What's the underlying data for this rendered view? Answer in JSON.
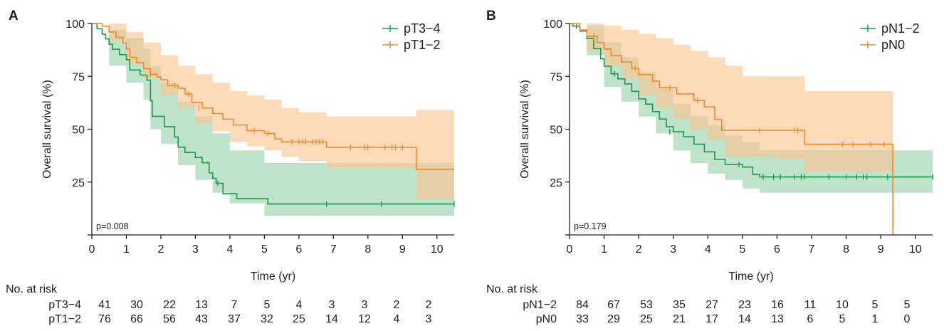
{
  "colors": {
    "green": "#1a9a4a",
    "orange": "#f08a2c",
    "green_band": "#a9d9b8",
    "orange_band": "#fbc58e",
    "axis": "#222222"
  },
  "chart_data": [
    {
      "type": "line",
      "subtype": "kaplan-meier",
      "panel_label": "A",
      "xlabel": "Time (yr)",
      "ylabel": "Overall survival (%)",
      "xlim": [
        0,
        10.5
      ],
      "ylim": [
        0,
        100
      ],
      "xticks": [
        "0",
        "1",
        "2",
        "3",
        "4",
        "5",
        "6",
        "7",
        "8",
        "9",
        "10"
      ],
      "yticks": [
        "25",
        "50",
        "75",
        "100"
      ],
      "legend_position": "top-right",
      "p_value": "p=0.008",
      "risk_title": "No. at risk",
      "series": [
        {
          "name": "pT3−4",
          "color_key": "green",
          "steps": [
            [
              0,
              100
            ],
            [
              0.15,
              97.5
            ],
            [
              0.3,
              95
            ],
            [
              0.4,
              92.7
            ],
            [
              0.5,
              90.2
            ],
            [
              0.6,
              87.8
            ],
            [
              0.8,
              85.3
            ],
            [
              1.0,
              82.9
            ],
            [
              1.1,
              78
            ],
            [
              1.4,
              75.6
            ],
            [
              1.6,
              73.2
            ],
            [
              1.7,
              63.4
            ],
            [
              1.75,
              56.1
            ],
            [
              2.1,
              51.2
            ],
            [
              2.4,
              46.3
            ],
            [
              2.5,
              41.5
            ],
            [
              2.7,
              39
            ],
            [
              3.0,
              36.6
            ],
            [
              3.2,
              34.1
            ],
            [
              3.4,
              29.3
            ],
            [
              3.5,
              26.8
            ],
            [
              3.6,
              24.4
            ],
            [
              3.8,
              19.5
            ],
            [
              4.2,
              17.1
            ],
            [
              5.1,
              14.6
            ],
            [
              10.5,
              14.6
            ]
          ],
          "censors": [
            [
              3.65,
              24.4
            ],
            [
              6.8,
              14.6
            ],
            [
              8.4,
              14.6
            ],
            [
              10.5,
              14.6
            ]
          ],
          "band": [
            [
              0,
              100,
              100
            ],
            [
              0.5,
              97,
              80
            ],
            [
              1.0,
              93,
              72
            ],
            [
              1.5,
              88,
              64
            ],
            [
              1.7,
              80,
              50
            ],
            [
              2.0,
              72,
              43
            ],
            [
              2.5,
              63,
              33
            ],
            [
              3.0,
              56,
              26
            ],
            [
              3.5,
              48,
              20
            ],
            [
              4.0,
              40,
              15
            ],
            [
              5.0,
              34,
              9
            ],
            [
              10.5,
              32,
              7
            ]
          ],
          "risk": [
            "41",
            "30",
            "22",
            "13",
            "7",
            "5",
            "4",
            "3",
            "3",
            "2",
            "2"
          ]
        },
        {
          "name": "pT1−2",
          "color_key": "orange",
          "steps": [
            [
              0,
              100
            ],
            [
              0.3,
              98.7
            ],
            [
              0.5,
              96
            ],
            [
              0.7,
              93.4
            ],
            [
              0.9,
              90.7
            ],
            [
              1.0,
              88
            ],
            [
              1.1,
              84
            ],
            [
              1.3,
              81.4
            ],
            [
              1.5,
              78.7
            ],
            [
              1.7,
              76
            ],
            [
              1.9,
              74.7
            ],
            [
              2.0,
              73.4
            ],
            [
              2.2,
              70.7
            ],
            [
              2.5,
              69.4
            ],
            [
              2.7,
              66.7
            ],
            [
              2.9,
              62.7
            ],
            [
              3.2,
              60
            ],
            [
              3.5,
              57.4
            ],
            [
              3.8,
              54.7
            ],
            [
              4.1,
              52
            ],
            [
              4.5,
              49.3
            ],
            [
              5.0,
              48
            ],
            [
              5.3,
              45.4
            ],
            [
              5.5,
              44
            ],
            [
              6.0,
              44
            ],
            [
              6.3,
              44
            ],
            [
              6.8,
              41.4
            ],
            [
              9.4,
              41.4
            ],
            [
              9.4,
              31
            ],
            [
              10.5,
              31
            ]
          ],
          "censors": [
            [
              1.7,
              76
            ],
            [
              2.4,
              70.7
            ],
            [
              2.8,
              66.7
            ],
            [
              3.1,
              60
            ],
            [
              4.7,
              49.3
            ],
            [
              5.1,
              48
            ],
            [
              5.8,
              44
            ],
            [
              6.0,
              44
            ],
            [
              6.1,
              44
            ],
            [
              6.2,
              44
            ],
            [
              6.4,
              44
            ],
            [
              6.5,
              44
            ],
            [
              6.6,
              44
            ],
            [
              6.7,
              44
            ],
            [
              7.5,
              41.4
            ],
            [
              7.9,
              41.4
            ],
            [
              8.0,
              41.4
            ],
            [
              8.5,
              41.4
            ],
            [
              8.7,
              41.4
            ],
            [
              8.8,
              41.4
            ],
            [
              9.0,
              41.4
            ]
          ],
          "band": [
            [
              0,
              100,
              100
            ],
            [
              0.5,
              100,
              92
            ],
            [
              1.0,
              96,
              81
            ],
            [
              1.5,
              91,
              74
            ],
            [
              2.0,
              85,
              66
            ],
            [
              2.5,
              80,
              60
            ],
            [
              3.0,
              76,
              53
            ],
            [
              3.5,
              72,
              49
            ],
            [
              4.0,
              68,
              44
            ],
            [
              4.5,
              66,
              42
            ],
            [
              5.0,
              64,
              40
            ],
            [
              5.5,
              60,
              37
            ],
            [
              6.0,
              58,
              35
            ],
            [
              6.8,
              56,
              32
            ],
            [
              9.4,
              56,
              32
            ],
            [
              9.4,
              59,
              17
            ],
            [
              10.5,
              59,
              17
            ]
          ],
          "risk": [
            "76",
            "66",
            "56",
            "43",
            "37",
            "32",
            "25",
            "14",
            "12",
            "4",
            "3"
          ]
        }
      ]
    },
    {
      "type": "line",
      "subtype": "kaplan-meier",
      "panel_label": "B",
      "xlabel": "Time (yr)",
      "ylabel": "Overall survival (%)",
      "xlim": [
        0,
        10.5
      ],
      "ylim": [
        0,
        100
      ],
      "xticks": [
        "0",
        "1",
        "2",
        "3",
        "4",
        "5",
        "6",
        "7",
        "8",
        "9",
        "10"
      ],
      "yticks": [
        "25",
        "50",
        "75",
        "100"
      ],
      "legend_position": "top-right",
      "p_value": "p=0.179",
      "risk_title": "No. at risk",
      "series": [
        {
          "name": "pN1−2",
          "color_key": "green",
          "steps": [
            [
              0,
              100
            ],
            [
              0.1,
              98.8
            ],
            [
              0.3,
              96.4
            ],
            [
              0.5,
              92.9
            ],
            [
              0.7,
              88.1
            ],
            [
              0.9,
              83.3
            ],
            [
              1.0,
              79.8
            ],
            [
              1.2,
              76.2
            ],
            [
              1.4,
              73.8
            ],
            [
              1.6,
              71.4
            ],
            [
              1.8,
              67.9
            ],
            [
              2.0,
              64.3
            ],
            [
              2.2,
              61.9
            ],
            [
              2.4,
              58.3
            ],
            [
              2.6,
              54.8
            ],
            [
              2.8,
              51.2
            ],
            [
              3.0,
              48.8
            ],
            [
              3.3,
              46.4
            ],
            [
              3.6,
              42.9
            ],
            [
              3.9,
              39.3
            ],
            [
              4.2,
              35.7
            ],
            [
              4.5,
              33.3
            ],
            [
              5.0,
              32.1
            ],
            [
              5.3,
              28.6
            ],
            [
              5.5,
              27.4
            ],
            [
              10.5,
              27.4
            ]
          ],
          "censors": [
            [
              0.2,
              98.8
            ],
            [
              1.3,
              76.2
            ],
            [
              2.9,
              48.8
            ],
            [
              4.9,
              33.3
            ],
            [
              5.6,
              27.4
            ],
            [
              5.9,
              27.4
            ],
            [
              6.1,
              27.4
            ],
            [
              6.5,
              27.4
            ],
            [
              6.7,
              27.4
            ],
            [
              6.8,
              27.4
            ],
            [
              7.5,
              27.4
            ],
            [
              8.0,
              27.4
            ],
            [
              8.3,
              27.4
            ],
            [
              8.5,
              27.4
            ],
            [
              8.6,
              27.4
            ],
            [
              9.2,
              27.4
            ],
            [
              10.5,
              27.4
            ]
          ],
          "band": [
            [
              0,
              100,
              100
            ],
            [
              0.5,
              99,
              85
            ],
            [
              1.0,
              91,
              70
            ],
            [
              1.5,
              84,
              63
            ],
            [
              2.0,
              77,
              56
            ],
            [
              2.5,
              70,
              48
            ],
            [
              3.0,
              62,
              40
            ],
            [
              3.5,
              56,
              34
            ],
            [
              4.0,
              52,
              29
            ],
            [
              4.5,
              47,
              26
            ],
            [
              5.0,
              44,
              22
            ],
            [
              5.5,
              40,
              20
            ],
            [
              10.5,
              40,
              19
            ]
          ],
          "risk": [
            "84",
            "67",
            "53",
            "35",
            "27",
            "23",
            "16",
            "11",
            "10",
            "5",
            "5"
          ]
        },
        {
          "name": "pN0",
          "color_key": "orange",
          "steps": [
            [
              0,
              100
            ],
            [
              0.3,
              97
            ],
            [
              0.5,
              93.9
            ],
            [
              0.8,
              90.9
            ],
            [
              1.0,
              87.9
            ],
            [
              1.2,
              84.8
            ],
            [
              1.5,
              81.8
            ],
            [
              1.8,
              78.8
            ],
            [
              2.0,
              75.8
            ],
            [
              2.4,
              72.7
            ],
            [
              2.6,
              69.7
            ],
            [
              3.1,
              66.7
            ],
            [
              3.6,
              63.6
            ],
            [
              3.9,
              60.6
            ],
            [
              4.2,
              54.5
            ],
            [
              4.4,
              49.5
            ],
            [
              6.7,
              49.5
            ],
            [
              6.8,
              42.9
            ],
            [
              9.35,
              42.9
            ],
            [
              9.35,
              0
            ]
          ],
          "censors": [
            [
              0.7,
              93.9
            ],
            [
              1.9,
              78.8
            ],
            [
              2.9,
              69.7
            ],
            [
              3.7,
              63.6
            ],
            [
              5.5,
              49.5
            ],
            [
              6.5,
              49.5
            ],
            [
              6.6,
              49.5
            ],
            [
              7.9,
              42.9
            ],
            [
              8.2,
              42.9
            ],
            [
              8.7,
              42.9
            ],
            [
              9.1,
              42.9
            ]
          ],
          "band": [
            [
              0,
              100,
              100
            ],
            [
              0.5,
              100,
              87
            ],
            [
              1.0,
              99,
              80
            ],
            [
              1.5,
              97,
              74
            ],
            [
              2.0,
              95,
              66
            ],
            [
              2.5,
              93,
              60
            ],
            [
              3.0,
              90,
              55
            ],
            [
              3.5,
              87,
              50
            ],
            [
              4.0,
              84,
              45
            ],
            [
              4.5,
              80,
              37
            ],
            [
              5.0,
              75,
              37
            ],
            [
              6.0,
              75,
              36
            ],
            [
              6.8,
              68,
              30
            ],
            [
              9.35,
              67,
              30
            ]
          ],
          "risk": [
            "33",
            "29",
            "25",
            "21",
            "17",
            "14",
            "13",
            "6",
            "5",
            "1",
            "0"
          ]
        }
      ]
    }
  ]
}
